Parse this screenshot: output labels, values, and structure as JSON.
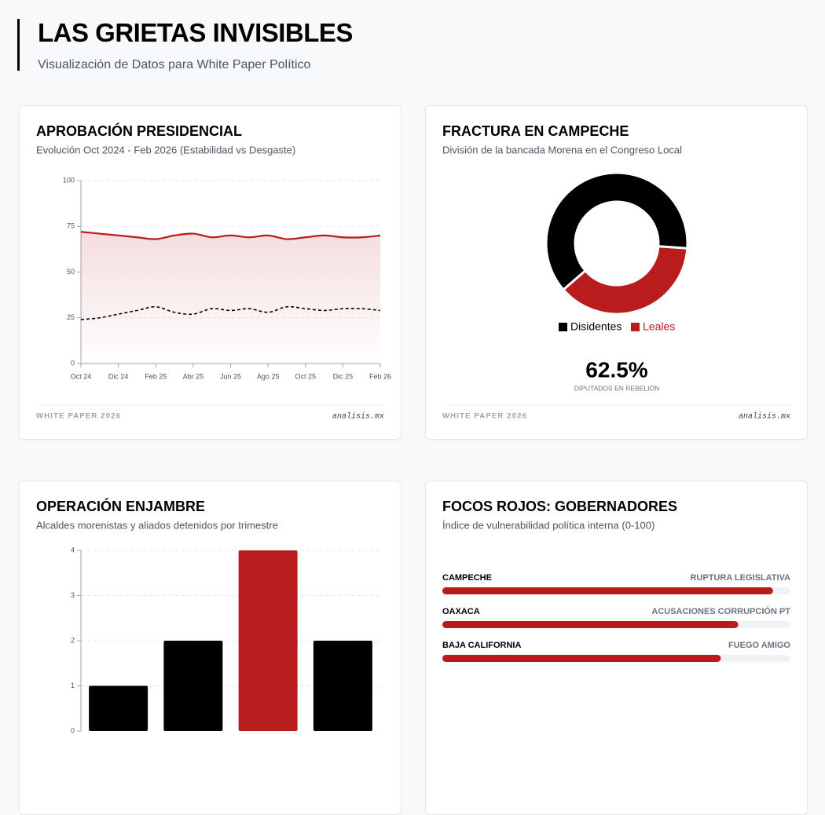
{
  "header": {
    "title": "LAS GRIETAS INVISIBLES",
    "subtitle": "Visualización de Datos para White Paper Político"
  },
  "chart_data": [
    {
      "type": "line",
      "title": "APROBACIÓN PRESIDENCIAL",
      "subtitle": "Evolución Oct 2024 - Feb 2026 (Estabilidad vs Desgaste)",
      "categories": [
        "Oct 24",
        null,
        "Dic 24",
        null,
        "Feb 25",
        null,
        "Abr 25",
        null,
        "Jun 25",
        null,
        "Ago 25",
        null,
        "Oct 25",
        null,
        "Dic 25",
        null,
        "Feb 26"
      ],
      "series": [
        {
          "color": "#b91c1c",
          "fill": true,
          "values": [
            72,
            71,
            70,
            69,
            68,
            70,
            71,
            69,
            70,
            69,
            70,
            68,
            69,
            70,
            69,
            69,
            70
          ]
        },
        {
          "color": "#000000",
          "dashed": true,
          "values": [
            24,
            25,
            27,
            29,
            31,
            28,
            27,
            30,
            29,
            30,
            28,
            31,
            30,
            29,
            30,
            30,
            29
          ]
        }
      ],
      "ylim": [
        0,
        100
      ],
      "yticks": [
        0,
        25,
        50,
        75,
        100
      ],
      "grid": true,
      "footer": {
        "left": "WHITE PAPER 2026",
        "right": "analisis.mx"
      }
    },
    {
      "type": "doughnut",
      "title": "FRACTURA EN CAMPECHE",
      "subtitle": "División de la bancada Morena en el Congreso Local",
      "categories": [
        "Disidentes",
        "Leales"
      ],
      "values": [
        62.5,
        37.5
      ],
      "colors": [
        "#000000",
        "#b91c1c"
      ],
      "legend": "bottom",
      "highlight": "62.5%",
      "highlight_caption": "DIPUTADOS EN REBELIÓN",
      "footer": {
        "left": "WHITE PAPER 2026",
        "right": "analisis.mx"
      }
    },
    {
      "type": "bar",
      "title": "OPERACIÓN ENJAMBRE",
      "subtitle": "Alcaldes morenistas y aliados detenidos por trimestre",
      "categories": [
        null,
        null,
        null,
        null
      ],
      "values": [
        1,
        2,
        4,
        2
      ],
      "colors": [
        "#000000",
        "#000000",
        "#b91c1c",
        "#000000"
      ],
      "ylim": [
        0,
        4
      ],
      "yticks": [
        0,
        1,
        2,
        3,
        4
      ],
      "grid": true
    },
    {
      "type": "progress",
      "title": "FOCOS ROJOS: GOBERNADORES",
      "subtitle": "Índice de vulnerabilidad política interna (0-100)",
      "categories": [
        "CAMPECHE",
        "OAXACA",
        "BAJA CALIFORNIA"
      ],
      "labels": [
        "RUPTURA LEGISLATIVA",
        "ACUSACIONES CORRUPCIÓN PT",
        "FUEGO AMIGO"
      ],
      "values": [
        95,
        85,
        80
      ],
      "color": "#b91c1c",
      "xlim": [
        0,
        100
      ]
    }
  ]
}
